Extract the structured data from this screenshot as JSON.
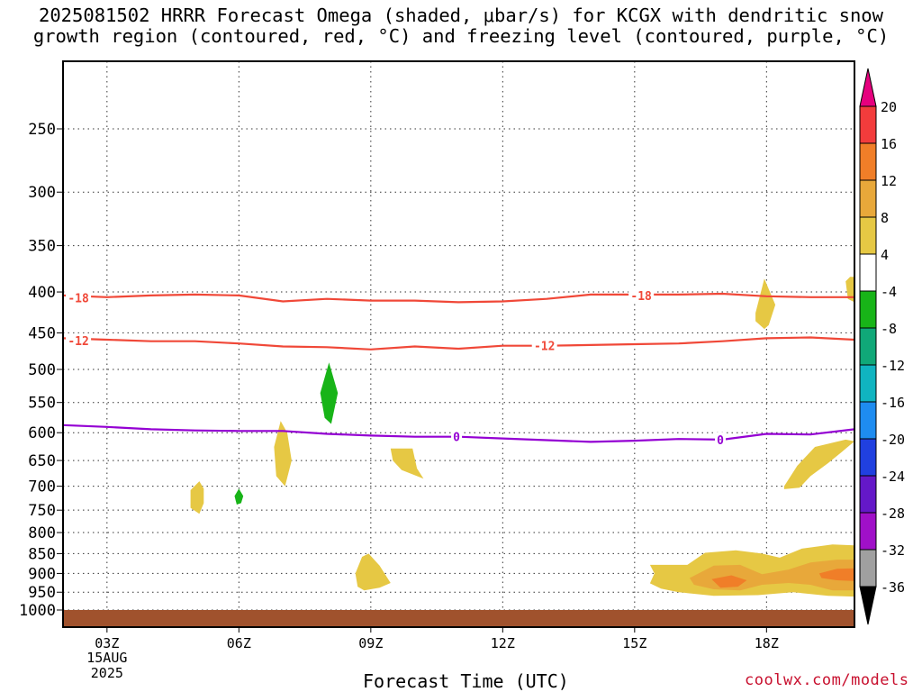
{
  "title": {
    "line1": "2025081502 HRRR Forecast Omega (shaded, μbar/s) for KCGX with dendritic snow",
    "line2": "growth region (contoured, red, °C) and freezing level (contoured, purple, °C)"
  },
  "credit": "coolwx.com/models",
  "chart_data": {
    "type": "contour",
    "x_axis": {
      "label": "Forecast Time (UTC)",
      "range_hours": [
        2,
        20
      ],
      "ticks": [
        {
          "hour": 3,
          "label": "03Z"
        },
        {
          "hour": 6,
          "label": "06Z"
        },
        {
          "hour": 9,
          "label": "09Z"
        },
        {
          "hour": 12,
          "label": "12Z"
        },
        {
          "hour": 15,
          "label": "15Z"
        },
        {
          "hour": 18,
          "label": "18Z"
        }
      ],
      "date_label": {
        "line1": "15AUG",
        "line2": "2025"
      }
    },
    "y_axis": {
      "type": "pressure",
      "range": [
        200,
        1040
      ],
      "ticks": [
        250,
        300,
        350,
        400,
        450,
        500,
        550,
        600,
        650,
        700,
        750,
        800,
        850,
        900,
        950,
        1000
      ]
    },
    "grid": true,
    "colorbar": {
      "labels": [
        "20",
        "16",
        "12",
        "8",
        "4",
        "-4",
        "-8",
        "-12",
        "-16",
        "-20",
        "-24",
        "-28",
        "-32",
        "-36"
      ],
      "colors": [
        "#e6007e",
        "#f23c3c",
        "#f07e28",
        "#e8a83a",
        "#e6c844",
        "#ffffff",
        "#18b418",
        "#10a878",
        "#10b4c0",
        "#1e8cf0",
        "#2040e0",
        "#6418c8",
        "#a010c8",
        "#a0a0a0",
        "#000000"
      ]
    },
    "contours": [
      {
        "level": "-18",
        "color": "#f04838",
        "points": [
          [
            2,
            404
          ],
          [
            3,
            406
          ],
          [
            4,
            404
          ],
          [
            5,
            403
          ],
          [
            6,
            404
          ],
          [
            7,
            411
          ],
          [
            8,
            408
          ],
          [
            9,
            410
          ],
          [
            10,
            410
          ],
          [
            11,
            412
          ],
          [
            12,
            411
          ],
          [
            13,
            408
          ],
          [
            14,
            403
          ],
          [
            15,
            403
          ],
          [
            16,
            403
          ],
          [
            17,
            402
          ],
          [
            18,
            405
          ],
          [
            19,
            406
          ],
          [
            20,
            406
          ]
        ]
      },
      {
        "level": "-12",
        "color": "#f04838",
        "points": [
          [
            2,
            457
          ],
          [
            3,
            459
          ],
          [
            4,
            461
          ],
          [
            5,
            461
          ],
          [
            6,
            464
          ],
          [
            7,
            468
          ],
          [
            8,
            469
          ],
          [
            9,
            472
          ],
          [
            10,
            468
          ],
          [
            11,
            471
          ],
          [
            12,
            467
          ],
          [
            13,
            467
          ],
          [
            14,
            466
          ],
          [
            15,
            465
          ],
          [
            16,
            464
          ],
          [
            17,
            461
          ],
          [
            18,
            457
          ],
          [
            19,
            456
          ],
          [
            20,
            459
          ]
        ]
      },
      {
        "level": "0",
        "color": "#9400d3",
        "points": [
          [
            2,
            587
          ],
          [
            3,
            590
          ],
          [
            4,
            594
          ],
          [
            5,
            596
          ],
          [
            6,
            597
          ],
          [
            7,
            597
          ],
          [
            8,
            602
          ],
          [
            9,
            605
          ],
          [
            10,
            607
          ],
          [
            11,
            607
          ],
          [
            12,
            610
          ],
          [
            13,
            613
          ],
          [
            14,
            616
          ],
          [
            15,
            614
          ],
          [
            16,
            611
          ],
          [
            17,
            612
          ],
          [
            18,
            602
          ],
          [
            19,
            603
          ],
          [
            20,
            594
          ]
        ]
      }
    ],
    "contour_labels": [
      {
        "text": "-18",
        "hour": 2.35,
        "p": 407,
        "color": "#f04838"
      },
      {
        "text": "-18",
        "hour": 15.15,
        "p": 404,
        "color": "#f04838"
      },
      {
        "text": "-12",
        "hour": 2.35,
        "p": 460,
        "color": "#f04838"
      },
      {
        "text": "-12",
        "hour": 12.95,
        "p": 467,
        "color": "#f04838"
      },
      {
        "text": "0",
        "hour": 10.95,
        "p": 607,
        "color": "#9400d3"
      },
      {
        "text": "0",
        "hour": 16.95,
        "p": 612,
        "color": "#9400d3"
      }
    ],
    "shaded_regions": [
      {
        "value": "4 to 8",
        "color": "#e6c844",
        "points": [
          [
            4.9,
            708
          ],
          [
            5.1,
            690
          ],
          [
            5.2,
            705
          ],
          [
            5.2,
            735
          ],
          [
            5.1,
            758
          ],
          [
            4.9,
            745
          ]
        ]
      },
      {
        "value": "4 to 8",
        "color": "#e6c844",
        "points": [
          [
            6.8,
            625
          ],
          [
            6.95,
            580
          ],
          [
            7.1,
            600
          ],
          [
            7.2,
            650
          ],
          [
            7.05,
            700
          ],
          [
            6.85,
            680
          ]
        ]
      },
      {
        "value": "4 to 8",
        "color": "#e6c844",
        "points": [
          [
            9.45,
            628
          ],
          [
            9.95,
            628
          ],
          [
            10.05,
            665
          ],
          [
            10.2,
            685
          ],
          [
            9.7,
            668
          ],
          [
            9.5,
            650
          ]
        ]
      },
      {
        "value": "4 to 8",
        "color": "#e6c844",
        "points": [
          [
            8.65,
            900
          ],
          [
            8.8,
            858
          ],
          [
            8.95,
            850
          ],
          [
            9.2,
            880
          ],
          [
            9.45,
            925
          ],
          [
            9.2,
            938
          ],
          [
            8.85,
            945
          ],
          [
            8.7,
            935
          ]
        ]
      },
      {
        "value": "4 to 8",
        "color": "#e6c844",
        "points": [
          [
            17.75,
            425
          ],
          [
            17.95,
            385
          ],
          [
            18.2,
            415
          ],
          [
            18.05,
            440
          ],
          [
            17.95,
            445
          ],
          [
            17.75,
            435
          ]
        ]
      },
      {
        "value": "4 to 8",
        "color": "#e6c844",
        "points": [
          [
            18.4,
            700
          ],
          [
            18.7,
            660
          ],
          [
            19.1,
            625
          ],
          [
            19.8,
            612
          ],
          [
            20,
            615
          ],
          [
            19.7,
            635
          ],
          [
            19.4,
            655
          ],
          [
            19.0,
            680
          ],
          [
            18.75,
            703
          ],
          [
            18.4,
            706
          ]
        ]
      },
      {
        "value": "4 to 8",
        "color": "#e6c844",
        "points": [
          [
            19.8,
            388
          ],
          [
            19.9,
            383
          ],
          [
            20,
            383
          ],
          [
            20,
            412
          ],
          [
            19.85,
            408
          ]
        ]
      },
      {
        "value": "4 to 8",
        "color": "#e6c844",
        "points": [
          [
            15.35,
            878
          ],
          [
            16.2,
            878
          ],
          [
            16.6,
            848
          ],
          [
            17.3,
            842
          ],
          [
            17.9,
            850
          ],
          [
            18.3,
            860
          ],
          [
            18.8,
            838
          ],
          [
            19.5,
            828
          ],
          [
            20,
            830
          ],
          [
            20,
            962
          ],
          [
            19.4,
            960
          ],
          [
            18.6,
            950
          ],
          [
            17.8,
            958
          ],
          [
            16.8,
            960
          ],
          [
            16.0,
            950
          ],
          [
            15.6,
            940
          ],
          [
            15.35,
            926
          ],
          [
            15.45,
            900
          ]
        ]
      },
      {
        "value": "8 to 12",
        "color": "#e8a83a",
        "points": [
          [
            16.25,
            912
          ],
          [
            16.8,
            880
          ],
          [
            17.4,
            878
          ],
          [
            17.9,
            902
          ],
          [
            18.5,
            890
          ],
          [
            19.0,
            872
          ],
          [
            19.6,
            865
          ],
          [
            20,
            865
          ],
          [
            20,
            945
          ],
          [
            19.5,
            945
          ],
          [
            19.0,
            930
          ],
          [
            18.5,
            925
          ],
          [
            17.9,
            930
          ],
          [
            17.4,
            945
          ],
          [
            16.8,
            942
          ],
          [
            16.35,
            930
          ]
        ]
      },
      {
        "value": "12 to 16",
        "color": "#f07e28",
        "points": [
          [
            16.75,
            915
          ],
          [
            17.2,
            905
          ],
          [
            17.55,
            918
          ],
          [
            17.35,
            935
          ],
          [
            16.95,
            938
          ]
        ]
      },
      {
        "value": "12 to 16",
        "color": "#f07e28",
        "points": [
          [
            19.2,
            900
          ],
          [
            19.6,
            888
          ],
          [
            20,
            887
          ],
          [
            20,
            920
          ],
          [
            19.6,
            918
          ],
          [
            19.25,
            912
          ]
        ]
      },
      {
        "value": "-4 to -8",
        "color": "#18b418",
        "points": [
          [
            7.85,
            535
          ],
          [
            8.05,
            490
          ],
          [
            8.25,
            535
          ],
          [
            8.1,
            585
          ],
          [
            7.95,
            575
          ]
        ]
      },
      {
        "value": "-4 to -8",
        "color": "#18b418",
        "points": [
          [
            5.9,
            720
          ],
          [
            6.0,
            705
          ],
          [
            6.1,
            720
          ],
          [
            6.05,
            735
          ],
          [
            5.95,
            738
          ]
        ]
      }
    ],
    "terrain": {
      "color": "#a0522d",
      "top_p": 1000
    }
  }
}
